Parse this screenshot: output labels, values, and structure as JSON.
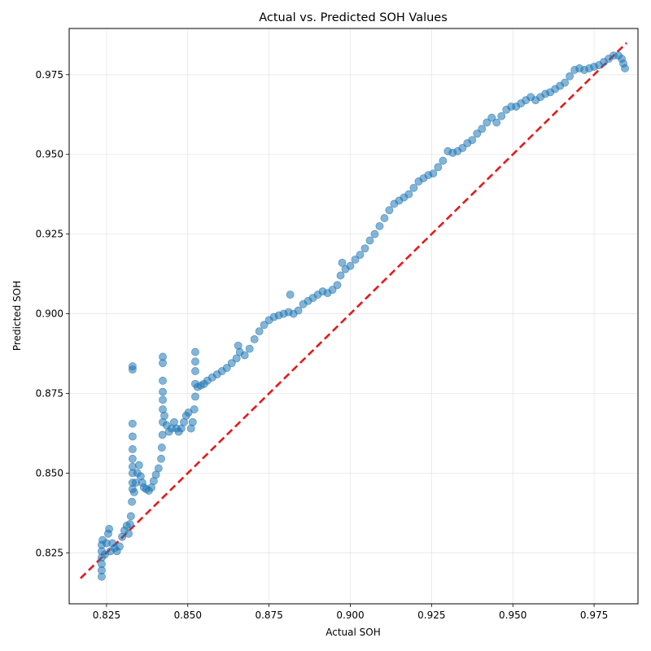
{
  "chart_data": {
    "type": "scatter",
    "title": "Actual vs. Predicted SOH Values",
    "xlabel": "Actual SOH",
    "ylabel": "Predicted SOH",
    "xlim": [
      0.8135,
      0.9885
    ],
    "ylim": [
      0.809,
      0.9895
    ],
    "x_ticks": [
      "0.825",
      "0.850",
      "0.875",
      "0.900",
      "0.925",
      "0.950",
      "0.975"
    ],
    "y_ticks": [
      "0.825",
      "0.850",
      "0.875",
      "0.900",
      "0.925",
      "0.950",
      "0.975"
    ],
    "grid": true,
    "colors": {
      "points": "#1f77b4",
      "reference": "#e41a1c"
    },
    "reference_line": {
      "style": "dashed",
      "from": [
        0.817,
        0.817
      ],
      "to": [
        0.985,
        0.985
      ]
    },
    "series": [
      {
        "points": [
          [
            0.8235,
            0.8175
          ],
          [
            0.8235,
            0.8195
          ],
          [
            0.8235,
            0.8215
          ],
          [
            0.8235,
            0.8235
          ],
          [
            0.8235,
            0.8255
          ],
          [
            0.8235,
            0.8275
          ],
          [
            0.8238,
            0.829
          ],
          [
            0.8245,
            0.8245
          ],
          [
            0.825,
            0.828
          ],
          [
            0.8255,
            0.831
          ],
          [
            0.8258,
            0.8325
          ],
          [
            0.8262,
            0.8255
          ],
          [
            0.8268,
            0.828
          ],
          [
            0.8275,
            0.8265
          ],
          [
            0.8282,
            0.8255
          ],
          [
            0.829,
            0.827
          ],
          [
            0.8298,
            0.83
          ],
          [
            0.8305,
            0.832
          ],
          [
            0.8312,
            0.8335
          ],
          [
            0.8318,
            0.831
          ],
          [
            0.8322,
            0.834
          ],
          [
            0.8325,
            0.8365
          ],
          [
            0.8328,
            0.841
          ],
          [
            0.833,
            0.845
          ],
          [
            0.833,
            0.847
          ],
          [
            0.833,
            0.85
          ],
          [
            0.833,
            0.852
          ],
          [
            0.833,
            0.8545
          ],
          [
            0.833,
            0.8575
          ],
          [
            0.833,
            0.8615
          ],
          [
            0.833,
            0.8655
          ],
          [
            0.833,
            0.8825
          ],
          [
            0.833,
            0.8835
          ],
          [
            0.8335,
            0.844
          ],
          [
            0.834,
            0.847
          ],
          [
            0.8345,
            0.85
          ],
          [
            0.835,
            0.8525
          ],
          [
            0.8355,
            0.849
          ],
          [
            0.836,
            0.847
          ],
          [
            0.8365,
            0.8455
          ],
          [
            0.8372,
            0.845
          ],
          [
            0.838,
            0.8445
          ],
          [
            0.8388,
            0.8455
          ],
          [
            0.8395,
            0.8475
          ],
          [
            0.8402,
            0.8495
          ],
          [
            0.841,
            0.8515
          ],
          [
            0.8418,
            0.8545
          ],
          [
            0.842,
            0.858
          ],
          [
            0.8422,
            0.862
          ],
          [
            0.8423,
            0.866
          ],
          [
            0.8423,
            0.87
          ],
          [
            0.8423,
            0.873
          ],
          [
            0.8423,
            0.8755
          ],
          [
            0.8423,
            0.879
          ],
          [
            0.8423,
            0.8845
          ],
          [
            0.8423,
            0.8865
          ],
          [
            0.8428,
            0.868
          ],
          [
            0.8435,
            0.865
          ],
          [
            0.8442,
            0.863
          ],
          [
            0.845,
            0.864
          ],
          [
            0.8458,
            0.866
          ],
          [
            0.8465,
            0.864
          ],
          [
            0.8472,
            0.863
          ],
          [
            0.848,
            0.864
          ],
          [
            0.8488,
            0.866
          ],
          [
            0.8495,
            0.868
          ],
          [
            0.8502,
            0.869
          ],
          [
            0.851,
            0.864
          ],
          [
            0.8515,
            0.866
          ],
          [
            0.852,
            0.87
          ],
          [
            0.8523,
            0.874
          ],
          [
            0.8523,
            0.878
          ],
          [
            0.8523,
            0.882
          ],
          [
            0.8523,
            0.885
          ],
          [
            0.8523,
            0.888
          ],
          [
            0.853,
            0.877
          ],
          [
            0.854,
            0.8775
          ],
          [
            0.855,
            0.878
          ],
          [
            0.856,
            0.879
          ],
          [
            0.8575,
            0.88
          ],
          [
            0.859,
            0.881
          ],
          [
            0.8605,
            0.882
          ],
          [
            0.862,
            0.883
          ],
          [
            0.8635,
            0.8845
          ],
          [
            0.865,
            0.886
          ],
          [
            0.8655,
            0.89
          ],
          [
            0.866,
            0.888
          ],
          [
            0.8675,
            0.887
          ],
          [
            0.869,
            0.889
          ],
          [
            0.8705,
            0.892
          ],
          [
            0.872,
            0.8945
          ],
          [
            0.8735,
            0.8965
          ],
          [
            0.875,
            0.898
          ],
          [
            0.8765,
            0.899
          ],
          [
            0.878,
            0.8995
          ],
          [
            0.8795,
            0.9
          ],
          [
            0.881,
            0.9005
          ],
          [
            0.8815,
            0.906
          ],
          [
            0.8825,
            0.9
          ],
          [
            0.884,
            0.901
          ],
          [
            0.8855,
            0.903
          ],
          [
            0.887,
            0.904
          ],
          [
            0.8885,
            0.905
          ],
          [
            0.89,
            0.906
          ],
          [
            0.8915,
            0.907
          ],
          [
            0.893,
            0.9065
          ],
          [
            0.8945,
            0.9075
          ],
          [
            0.896,
            0.909
          ],
          [
            0.897,
            0.912
          ],
          [
            0.8975,
            0.916
          ],
          [
            0.8985,
            0.914
          ],
          [
            0.9,
            0.915
          ],
          [
            0.9015,
            0.917
          ],
          [
            0.903,
            0.9185
          ],
          [
            0.9045,
            0.9205
          ],
          [
            0.906,
            0.923
          ],
          [
            0.9075,
            0.925
          ],
          [
            0.909,
            0.9275
          ],
          [
            0.9105,
            0.93
          ],
          [
            0.912,
            0.9325
          ],
          [
            0.9135,
            0.9345
          ],
          [
            0.915,
            0.9355
          ],
          [
            0.9165,
            0.9365
          ],
          [
            0.918,
            0.9375
          ],
          [
            0.9195,
            0.9395
          ],
          [
            0.921,
            0.9415
          ],
          [
            0.9225,
            0.9425
          ],
          [
            0.924,
            0.9435
          ],
          [
            0.9255,
            0.944
          ],
          [
            0.927,
            0.946
          ],
          [
            0.9285,
            0.948
          ],
          [
            0.93,
            0.951
          ],
          [
            0.9315,
            0.9505
          ],
          [
            0.933,
            0.951
          ],
          [
            0.9345,
            0.952
          ],
          [
            0.936,
            0.9535
          ],
          [
            0.9375,
            0.9545
          ],
          [
            0.939,
            0.9565
          ],
          [
            0.9405,
            0.958
          ],
          [
            0.942,
            0.96
          ],
          [
            0.9435,
            0.9615
          ],
          [
            0.945,
            0.96
          ],
          [
            0.9465,
            0.962
          ],
          [
            0.948,
            0.964
          ],
          [
            0.9495,
            0.965
          ],
          [
            0.951,
            0.965
          ],
          [
            0.9525,
            0.966
          ],
          [
            0.954,
            0.967
          ],
          [
            0.9555,
            0.968
          ],
          [
            0.957,
            0.967
          ],
          [
            0.9585,
            0.968
          ],
          [
            0.96,
            0.969
          ],
          [
            0.9615,
            0.9695
          ],
          [
            0.963,
            0.9705
          ],
          [
            0.9645,
            0.9715
          ],
          [
            0.966,
            0.9725
          ],
          [
            0.9675,
            0.9745
          ],
          [
            0.969,
            0.9765
          ],
          [
            0.9705,
            0.977
          ],
          [
            0.972,
            0.9765
          ],
          [
            0.9735,
            0.977
          ],
          [
            0.975,
            0.9775
          ],
          [
            0.9765,
            0.978
          ],
          [
            0.978,
            0.979
          ],
          [
            0.9795,
            0.98
          ],
          [
            0.981,
            0.981
          ],
          [
            0.9825,
            0.981
          ],
          [
            0.9835,
            0.98
          ],
          [
            0.984,
            0.9785
          ],
          [
            0.9845,
            0.977
          ]
        ]
      }
    ]
  }
}
